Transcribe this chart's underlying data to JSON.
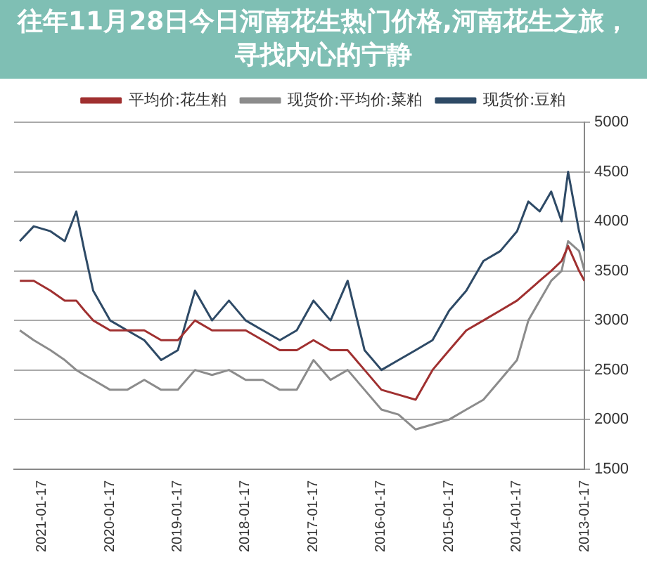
{
  "chart_data": {
    "type": "line",
    "title": "往年11月28日今日河南花生热门价格,河南花生之旅，寻找内心的宁静",
    "x": [
      "2013-01-17",
      "2013-02-15",
      "2013-04-15",
      "2013-05-20",
      "2013-07-15",
      "2013-09-15",
      "2013-11-15",
      "2014-01-15",
      "2014-04-15",
      "2014-07-15",
      "2014-10-15",
      "2015-01-15",
      "2015-04-15",
      "2015-07-15",
      "2015-10-15",
      "2016-01-15",
      "2016-04-15",
      "2016-07-15",
      "2016-10-15",
      "2017-01-15",
      "2017-04-15",
      "2017-07-15",
      "2017-10-15",
      "2018-01-15",
      "2018-04-15",
      "2018-07-15",
      "2018-10-15",
      "2019-01-15",
      "2019-04-15",
      "2019-07-15",
      "2019-10-15",
      "2020-01-15",
      "2020-04-15",
      "2020-06-01",
      "2020-07-15",
      "2020-09-15",
      "2020-12-01",
      "2021-03-01",
      "2021-05-15"
    ],
    "series": [
      {
        "name": "平均价:花生粕",
        "color": "#a03030",
        "values": [
          3400,
          3500,
          3750,
          3600,
          3500,
          3400,
          3300,
          3200,
          3100,
          3000,
          2900,
          2700,
          2500,
          2200,
          2250,
          2300,
          2500,
          2700,
          2700,
          2800,
          2700,
          2700,
          2800,
          2900,
          2900,
          2900,
          3000,
          2800,
          2800,
          2900,
          2900,
          2900,
          3000,
          3100,
          3200,
          3200,
          3300,
          3400,
          3400
        ]
      },
      {
        "name": "现货价:平均价:菜粕",
        "color": "#8c8c8c",
        "values": [
          3500,
          3700,
          3800,
          3500,
          3400,
          3200,
          3000,
          2600,
          2400,
          2200,
          2100,
          2000,
          1950,
          1900,
          2050,
          2100,
          2300,
          2500,
          2400,
          2600,
          2300,
          2300,
          2400,
          2400,
          2500,
          2450,
          2500,
          2300,
          2300,
          2400,
          2300,
          2300,
          2400,
          2450,
          2500,
          2600,
          2700,
          2800,
          2900
        ]
      },
      {
        "name": "现货价:豆粕",
        "color": "#2e4a66",
        "values": [
          3700,
          3900,
          4500,
          4000,
          4300,
          4100,
          4200,
          3900,
          3700,
          3600,
          3300,
          3100,
          2800,
          2700,
          2600,
          2500,
          2700,
          3400,
          3000,
          3200,
          2900,
          2800,
          2900,
          3000,
          3200,
          3000,
          3300,
          2700,
          2600,
          2800,
          2900,
          3000,
          3300,
          3700,
          4100,
          3800,
          3900,
          3950,
          3800
        ]
      }
    ],
    "xlim": [
      "2021-06-15",
      "2013-01-17"
    ],
    "xticks": [
      "2013-01-17",
      "2014-01-17",
      "2015-01-17",
      "2016-01-17",
      "2017-01-17",
      "2018-01-17",
      "2019-01-17",
      "2020-01-17",
      "2021-01-17"
    ],
    "ylim": [
      1500,
      5000
    ],
    "yticks": [
      1500,
      2000,
      2500,
      3000,
      3500,
      4000,
      4500,
      5000
    ],
    "grid": "y",
    "legend": "top",
    "marker": "none"
  }
}
